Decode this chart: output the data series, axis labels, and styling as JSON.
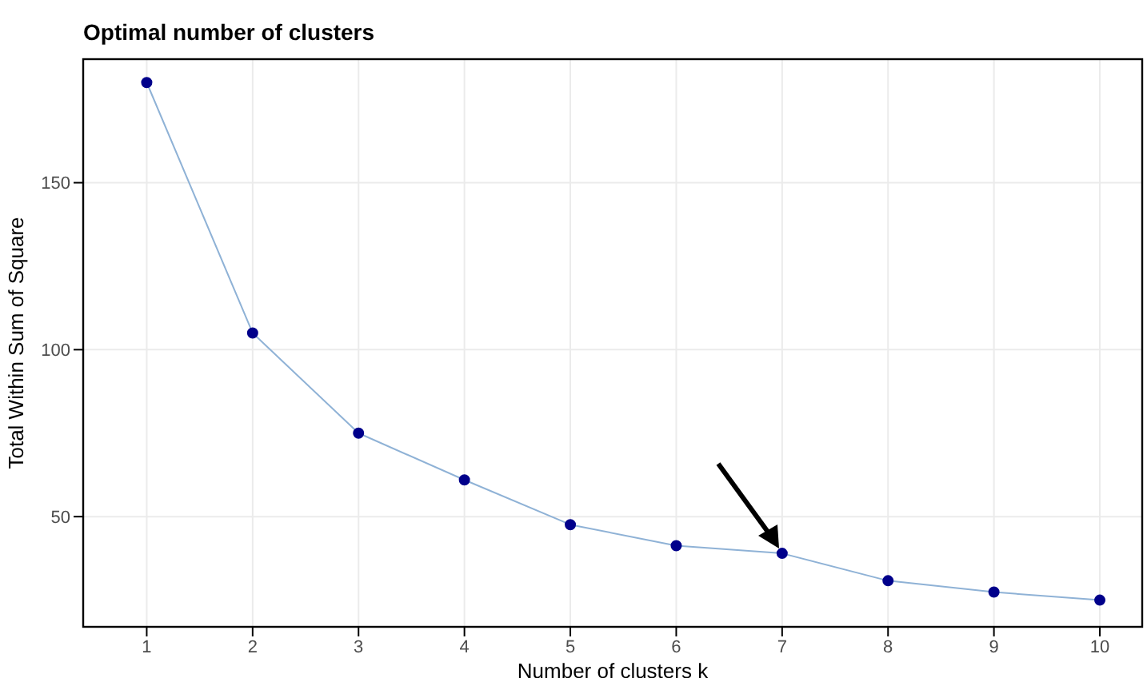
{
  "chart_data": {
    "type": "line",
    "title": "Optimal number of clusters",
    "xlabel": "Number of clusters k",
    "ylabel": "Total Within Sum of Square",
    "x": [
      1,
      2,
      3,
      4,
      5,
      6,
      7,
      8,
      9,
      10
    ],
    "series": [
      {
        "color": "#8fb2d6",
        "values": [
          180,
          105,
          75,
          61,
          47.6,
          41.3,
          39,
          30.8,
          27.4,
          25
        ]
      }
    ],
    "marker": "circle",
    "xlim": [
      0.4,
      10.4
    ],
    "xticks": [
      1,
      2,
      3,
      4,
      5,
      6,
      7,
      8,
      9,
      10
    ],
    "ylim": [
      17,
      187
    ],
    "yticks": [
      50,
      100,
      150
    ],
    "grid": true
  }
}
